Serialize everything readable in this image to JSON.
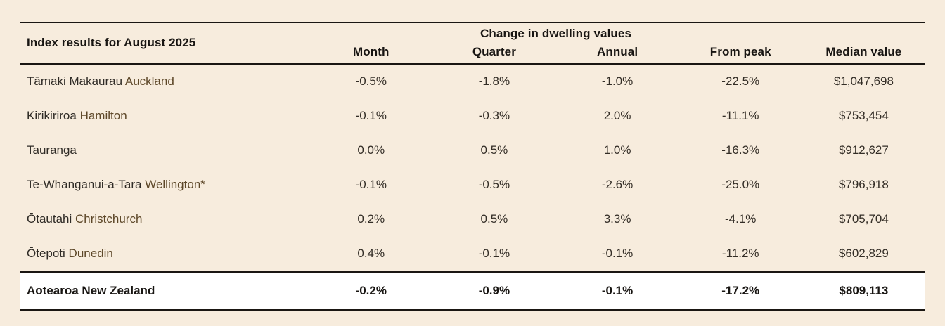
{
  "colors": {
    "background": "#f7ecdd",
    "rule": "#1a1612",
    "heading_text": "#181512",
    "value_text": "#332d26",
    "maori_name_text": "#2f2b26",
    "english_name_text": "#5d4728",
    "total_row_background": "#ffffff"
  },
  "chart_data": {
    "type": "table",
    "title": "Index results for August 2025",
    "group_header": "Change in dwelling values",
    "columns": [
      "Month",
      "Quarter",
      "Annual",
      "From peak",
      "Median value"
    ],
    "rows": [
      {
        "maori": "Tāmaki Makaurau",
        "english": "Auckland",
        "month": "-0.5%",
        "quarter": "-1.8%",
        "annual": "-1.0%",
        "from_peak": "-22.5%",
        "median_value": "$1,047,698"
      },
      {
        "maori": "Kirikiriroa",
        "english": "Hamilton",
        "month": "-0.1%",
        "quarter": "-0.3%",
        "annual": "2.0%",
        "from_peak": "-11.1%",
        "median_value": "$753,454"
      },
      {
        "maori": "Tauranga",
        "english": "",
        "month": "0.0%",
        "quarter": "0.5%",
        "annual": "1.0%",
        "from_peak": "-16.3%",
        "median_value": "$912,627"
      },
      {
        "maori": "Te-Whanganui-a-Tara",
        "english": "Wellington*",
        "month": "-0.1%",
        "quarter": "-0.5%",
        "annual": "-2.6%",
        "from_peak": "-25.0%",
        "median_value": "$796,918"
      },
      {
        "maori": "Ōtautahi",
        "english": "Christchurch",
        "month": "0.2%",
        "quarter": "0.5%",
        "annual": "3.3%",
        "from_peak": "-4.1%",
        "median_value": "$705,704"
      },
      {
        "maori": "Ōtepoti",
        "english": "Dunedin",
        "month": "0.4%",
        "quarter": "-0.1%",
        "annual": "-0.1%",
        "from_peak": "-11.2%",
        "median_value": "$602,829"
      }
    ],
    "total_row": {
      "label": "Aotearoa New Zealand",
      "month": "-0.2%",
      "quarter": "-0.9%",
      "annual": "-0.1%",
      "from_peak": "-17.2%",
      "median_value": "$809,113"
    }
  }
}
